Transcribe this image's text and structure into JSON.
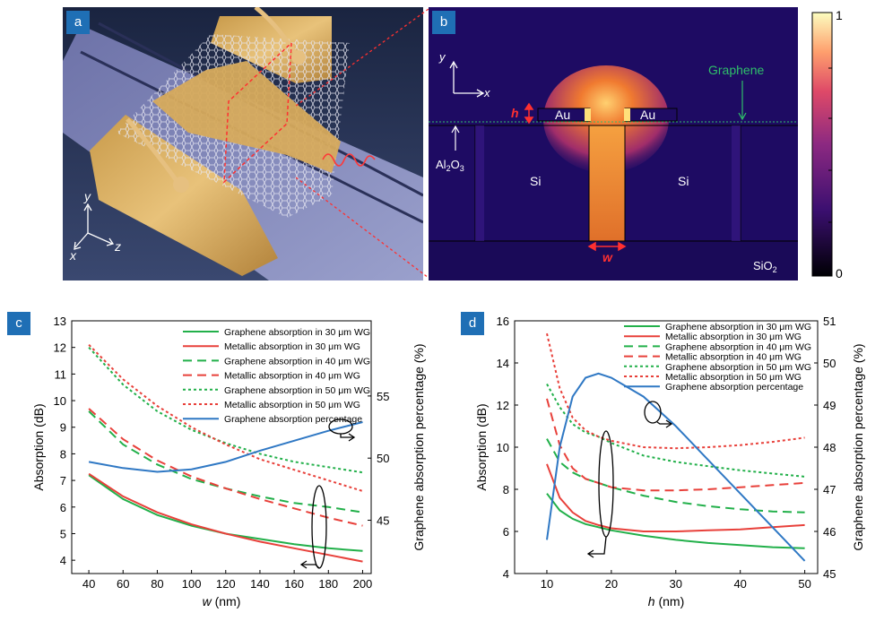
{
  "panel_a": {
    "label": "a",
    "axis_y": "y",
    "axis_x": "x",
    "axis_z": "z"
  },
  "panel_b": {
    "label": "b",
    "axis_y": "y",
    "axis_x": "x",
    "h_label": "h",
    "au_left": "Au",
    "au_right": "Au",
    "graphene": "Graphene",
    "al2o3_main": "Al",
    "al2o3_sub1": "2",
    "al2o3_mid": "O",
    "al2o3_sub2": "3",
    "si_left": "Si",
    "si_right": "Si",
    "w_label": "w",
    "sio2_main": "SiO",
    "sio2_sub": "2",
    "colorbar_max": "1",
    "colorbar_min": "0"
  },
  "panel_c": {
    "label": "c"
  },
  "panel_d": {
    "label": "d"
  },
  "chart_data": [
    {
      "type": "line",
      "panel": "c",
      "xlabel_italic": "w",
      "xlabel_unit": " (nm)",
      "ylabel": "Absorption (dB)",
      "y2label": "Graphene absorption percentage (%)",
      "xlim": [
        30,
        205
      ],
      "ylim": [
        3.5,
        13
      ],
      "y2lim": [
        40.71,
        61.05
      ],
      "xticks": [
        40,
        60,
        80,
        100,
        120,
        140,
        160,
        180,
        200
      ],
      "yticks": [
        4,
        5,
        6,
        7,
        8,
        9,
        10,
        11,
        12,
        13
      ],
      "y2ticks": [
        45,
        50,
        55
      ],
      "x": [
        40,
        60,
        80,
        100,
        120,
        140,
        160,
        180,
        200
      ],
      "series": [
        {
          "name": "Graphene absorption in 30 μm WG",
          "color": "#22b04a",
          "dash": "",
          "axis": "left",
          "values": [
            7.2,
            6.3,
            5.7,
            5.3,
            5.0,
            4.8,
            4.6,
            4.45,
            4.35
          ]
        },
        {
          "name": "Metallic absorption in 30 μm WG",
          "color": "#e8403a",
          "dash": "",
          "axis": "left",
          "values": [
            7.25,
            6.4,
            5.8,
            5.35,
            5.0,
            4.7,
            4.45,
            4.2,
            3.95
          ]
        },
        {
          "name": "Graphene absorption in 40 μm WG",
          "color": "#22b04a",
          "dash": "10 6",
          "axis": "left",
          "values": [
            9.6,
            8.35,
            7.6,
            7.05,
            6.7,
            6.4,
            6.15,
            6.0,
            5.8
          ]
        },
        {
          "name": "Metallic absorption in 40 μm WG",
          "color": "#e8403a",
          "dash": "10 6",
          "axis": "left",
          "values": [
            9.7,
            8.55,
            7.75,
            7.15,
            6.7,
            6.3,
            5.95,
            5.6,
            5.3
          ]
        },
        {
          "name": "Graphene absorption in 50 μm WG",
          "color": "#22b04a",
          "dash": "3 3",
          "axis": "left",
          "values": [
            12.0,
            10.6,
            9.6,
            8.9,
            8.4,
            8.0,
            7.7,
            7.5,
            7.3
          ]
        },
        {
          "name": "Metallic absorption in 50 μm WG",
          "color": "#e8403a",
          "dash": "3 3",
          "axis": "left",
          "values": [
            12.1,
            10.8,
            9.8,
            9.0,
            8.35,
            7.8,
            7.4,
            7.0,
            6.6
          ]
        },
        {
          "name": "Graphene absorption percentage",
          "color": "#2f78c4",
          "dash": "",
          "axis": "right",
          "values": [
            49.7,
            49.2,
            48.9,
            49.1,
            49.7,
            50.6,
            51.4,
            52.2,
            52.9
          ]
        }
      ]
    },
    {
      "type": "line",
      "panel": "d",
      "xlabel_italic": "h",
      "xlabel_unit": " (nm)",
      "ylabel": "Absorption (dB)",
      "y2label": "Graphene absorption percentage (%)",
      "xlim": [
        5,
        52
      ],
      "ylim": [
        4,
        16
      ],
      "y2lim": [
        45,
        51
      ],
      "xticks": [
        10,
        20,
        30,
        40,
        50
      ],
      "yticks": [
        4,
        6,
        8,
        10,
        12,
        14,
        16
      ],
      "y2ticks": [
        45,
        46,
        47,
        48,
        49,
        50,
        51
      ],
      "x": [
        10,
        12,
        14,
        16,
        18,
        20,
        25,
        30,
        35,
        40,
        45,
        50
      ],
      "series": [
        {
          "name": "Graphene absorption in 30 μm WG",
          "color": "#22b04a",
          "dash": "",
          "axis": "left",
          "values": [
            7.8,
            7.0,
            6.6,
            6.35,
            6.2,
            6.05,
            5.8,
            5.6,
            5.45,
            5.35,
            5.25,
            5.2
          ]
        },
        {
          "name": "Metallic absorption in 30 μm WG",
          "color": "#e8403a",
          "dash": "",
          "axis": "left",
          "values": [
            9.2,
            7.6,
            6.9,
            6.5,
            6.3,
            6.15,
            6.0,
            6.0,
            6.05,
            6.1,
            6.2,
            6.3
          ]
        },
        {
          "name": "Graphene absorption in 40 μm WG",
          "color": "#22b04a",
          "dash": "10 6",
          "axis": "left",
          "values": [
            10.4,
            9.3,
            8.8,
            8.5,
            8.3,
            8.1,
            7.7,
            7.4,
            7.2,
            7.05,
            6.95,
            6.9
          ]
        },
        {
          "name": "Metallic absorption in 40 μm WG",
          "color": "#e8403a",
          "dash": "10 6",
          "axis": "left",
          "values": [
            12.3,
            10.1,
            9.0,
            8.5,
            8.3,
            8.1,
            7.95,
            7.95,
            8.0,
            8.1,
            8.2,
            8.3
          ]
        },
        {
          "name": "Graphene absorption in 50 μm WG",
          "color": "#22b04a",
          "dash": "3 3",
          "axis": "left",
          "values": [
            13.0,
            11.9,
            11.1,
            10.7,
            10.5,
            10.2,
            9.6,
            9.3,
            9.1,
            8.9,
            8.75,
            8.6
          ]
        },
        {
          "name": "Metallic absorption in 50 μm WG",
          "color": "#e8403a",
          "dash": "3 3",
          "axis": "left",
          "values": [
            15.4,
            12.8,
            11.4,
            10.8,
            10.5,
            10.3,
            10.0,
            9.95,
            10.0,
            10.1,
            10.25,
            10.45
          ]
        },
        {
          "name": "Graphene absorption percentage",
          "color": "#2f78c4",
          "dash": "",
          "axis": "right",
          "values": [
            45.8,
            48.0,
            49.2,
            49.65,
            49.75,
            49.65,
            49.2,
            48.5,
            47.7,
            46.9,
            46.1,
            45.3
          ]
        }
      ]
    }
  ]
}
